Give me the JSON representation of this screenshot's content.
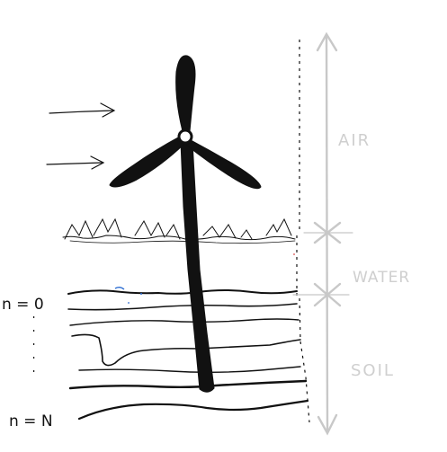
{
  "labels": {
    "air": "AIR",
    "water": "WATER",
    "soil": "SOIL",
    "n_top": "n = 0",
    "n_bottom": "n = N"
  },
  "colors": {
    "ink": "#111111",
    "grey": "#c8c8c8",
    "grey_text": "#cfcfcf",
    "blue_speck": "#2a6bd1",
    "red_speck": "#e07070"
  },
  "icons": {
    "wind_arrows": "arrow-right-icon",
    "turbine": "wind-turbine-icon"
  }
}
